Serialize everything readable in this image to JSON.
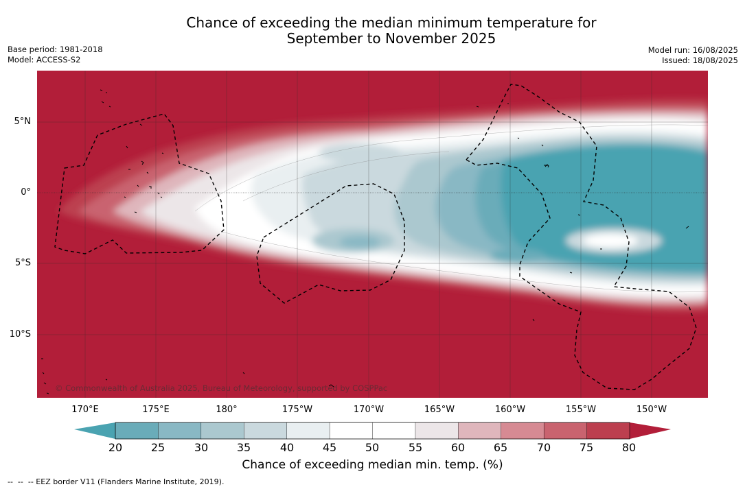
{
  "title": {
    "line1": "Chance of exceeding the median minimum temperature for",
    "line2": "September to November 2025"
  },
  "meta": {
    "base_period": "Base period: 1981-2018",
    "model": "Model: ACCESS-S2",
    "model_run": "Model run: 16/08/2025",
    "issued": "Issued: 18/08/2025"
  },
  "map": {
    "credit": "© Commonwealth of Australia 2025, Bureau of Meteorology, supported by COSPPac",
    "lat_ticks": [
      "5°N",
      "0°",
      "5°S",
      "10°S"
    ],
    "lon_ticks": [
      "170°E",
      "175°E",
      "180°",
      "175°W",
      "170°W",
      "165°W",
      "160°W",
      "155°W",
      "150°W"
    ],
    "lat_range": [
      -14.5,
      8.5
    ],
    "lon_range": [
      -192.5,
      -145.2
    ]
  },
  "colorbar": {
    "ticks": [
      "20",
      "25",
      "30",
      "35",
      "40",
      "45",
      "50",
      "55",
      "60",
      "65",
      "70",
      "75",
      "80"
    ],
    "colors": [
      "#4aa3b1",
      "#6aacb9",
      "#89b8c4",
      "#abc8cf",
      "#cad9de",
      "#e9eff1",
      "#ffffff",
      "#ffffff",
      "#ece6e8",
      "#dfb6bc",
      "#d68a93",
      "#c9636f",
      "#bc3f4f",
      "#b21e39"
    ],
    "label": "Chance of exceeding median min. temp. (%)"
  },
  "footer": {
    "eez_note": "--  --  -- EEZ border V11 (Flanders Marine Institute, 2019)."
  },
  "colors": {
    "below": "#4aa3b1",
    "above": "#b21e39"
  }
}
